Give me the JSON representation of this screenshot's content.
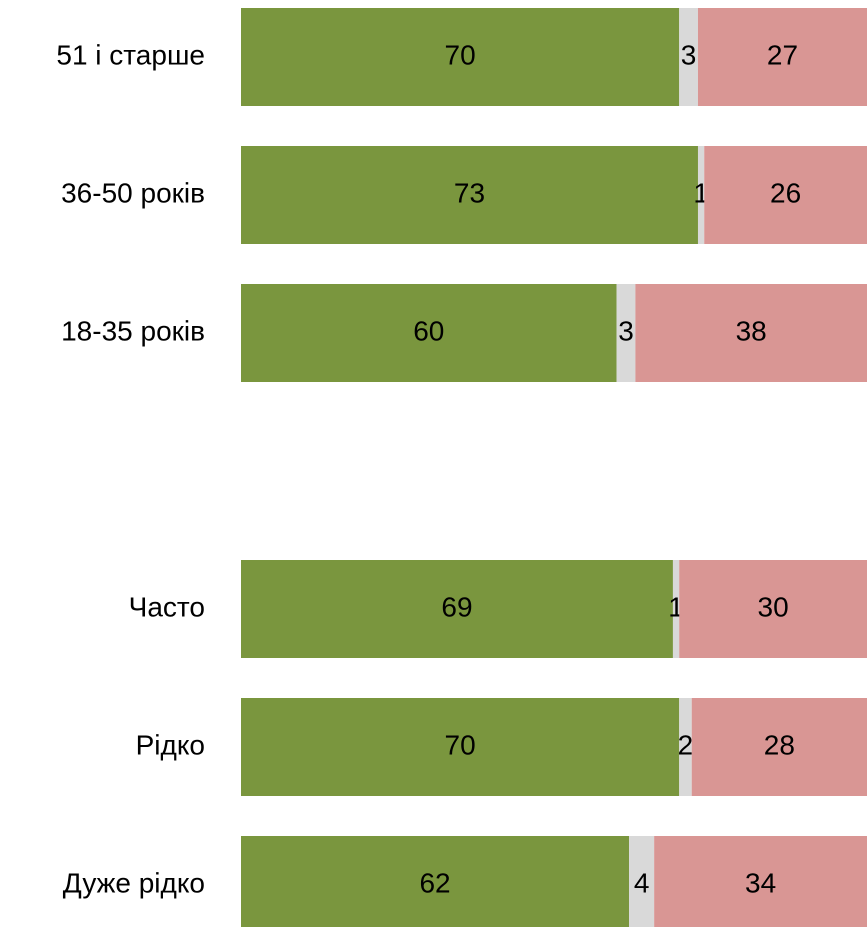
{
  "chart_data": {
    "type": "stacked_bar_horizontal",
    "categories": [
      "51 і старше",
      "36-50 років",
      "18-35 років",
      null,
      "Часто",
      "Рідко",
      "Дуже рідко"
    ],
    "series": [
      {
        "color": "#7a963e",
        "values": [
          70,
          73,
          60,
          null,
          69,
          70,
          62
        ]
      },
      {
        "color": "#d9d9d9",
        "values": [
          3,
          1,
          3,
          null,
          1,
          2,
          4
        ]
      },
      {
        "color": "#d99694",
        "values": [
          27,
          26,
          38,
          null,
          30,
          28,
          34
        ]
      }
    ],
    "xlim": [
      0,
      100
    ]
  }
}
